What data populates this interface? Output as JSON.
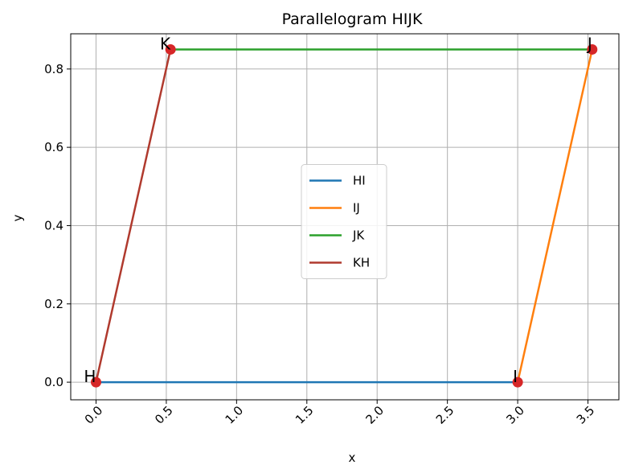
{
  "chart_data": {
    "type": "line",
    "title": "Parallelogram HIJK",
    "xlabel": "x",
    "ylabel": "y",
    "xlim": [
      -0.18,
      3.72
    ],
    "ylim": [
      -0.045,
      0.89
    ],
    "grid": true,
    "legend_position": "center",
    "x_ticks": [
      0.0,
      0.5,
      1.0,
      1.5,
      2.0,
      2.5,
      3.0,
      3.5
    ],
    "x_tick_labels": [
      "0.0",
      "0.5",
      "1.0",
      "1.5",
      "2.0",
      "2.5",
      "3.0",
      "3.5"
    ],
    "y_ticks": [
      0.0,
      0.2,
      0.4,
      0.6,
      0.8
    ],
    "y_tick_labels": [
      "0.0",
      "0.2",
      "0.4",
      "0.6",
      "0.8"
    ],
    "points": [
      {
        "label": "H",
        "x": 0.0,
        "y": 0.0
      },
      {
        "label": "I",
        "x": 3.0,
        "y": 0.0
      },
      {
        "label": "J",
        "x": 3.53,
        "y": 0.85
      },
      {
        "label": "K",
        "x": 0.53,
        "y": 0.85
      }
    ],
    "series": [
      {
        "name": "HI",
        "color": "#1f77b4",
        "x": [
          0.0,
          3.0
        ],
        "y": [
          0.0,
          0.0
        ]
      },
      {
        "name": "IJ",
        "color": "#ff7f0e",
        "x": [
          3.0,
          3.53
        ],
        "y": [
          0.0,
          0.85
        ]
      },
      {
        "name": "JK",
        "color": "#2ca02c",
        "x": [
          3.53,
          0.53
        ],
        "y": [
          0.85,
          0.85
        ]
      },
      {
        "name": "KH",
        "color": "#b03a2e",
        "x": [
          0.53,
          0.0
        ],
        "y": [
          0.85,
          0.0
        ]
      }
    ],
    "point_color": "#d62728"
  }
}
